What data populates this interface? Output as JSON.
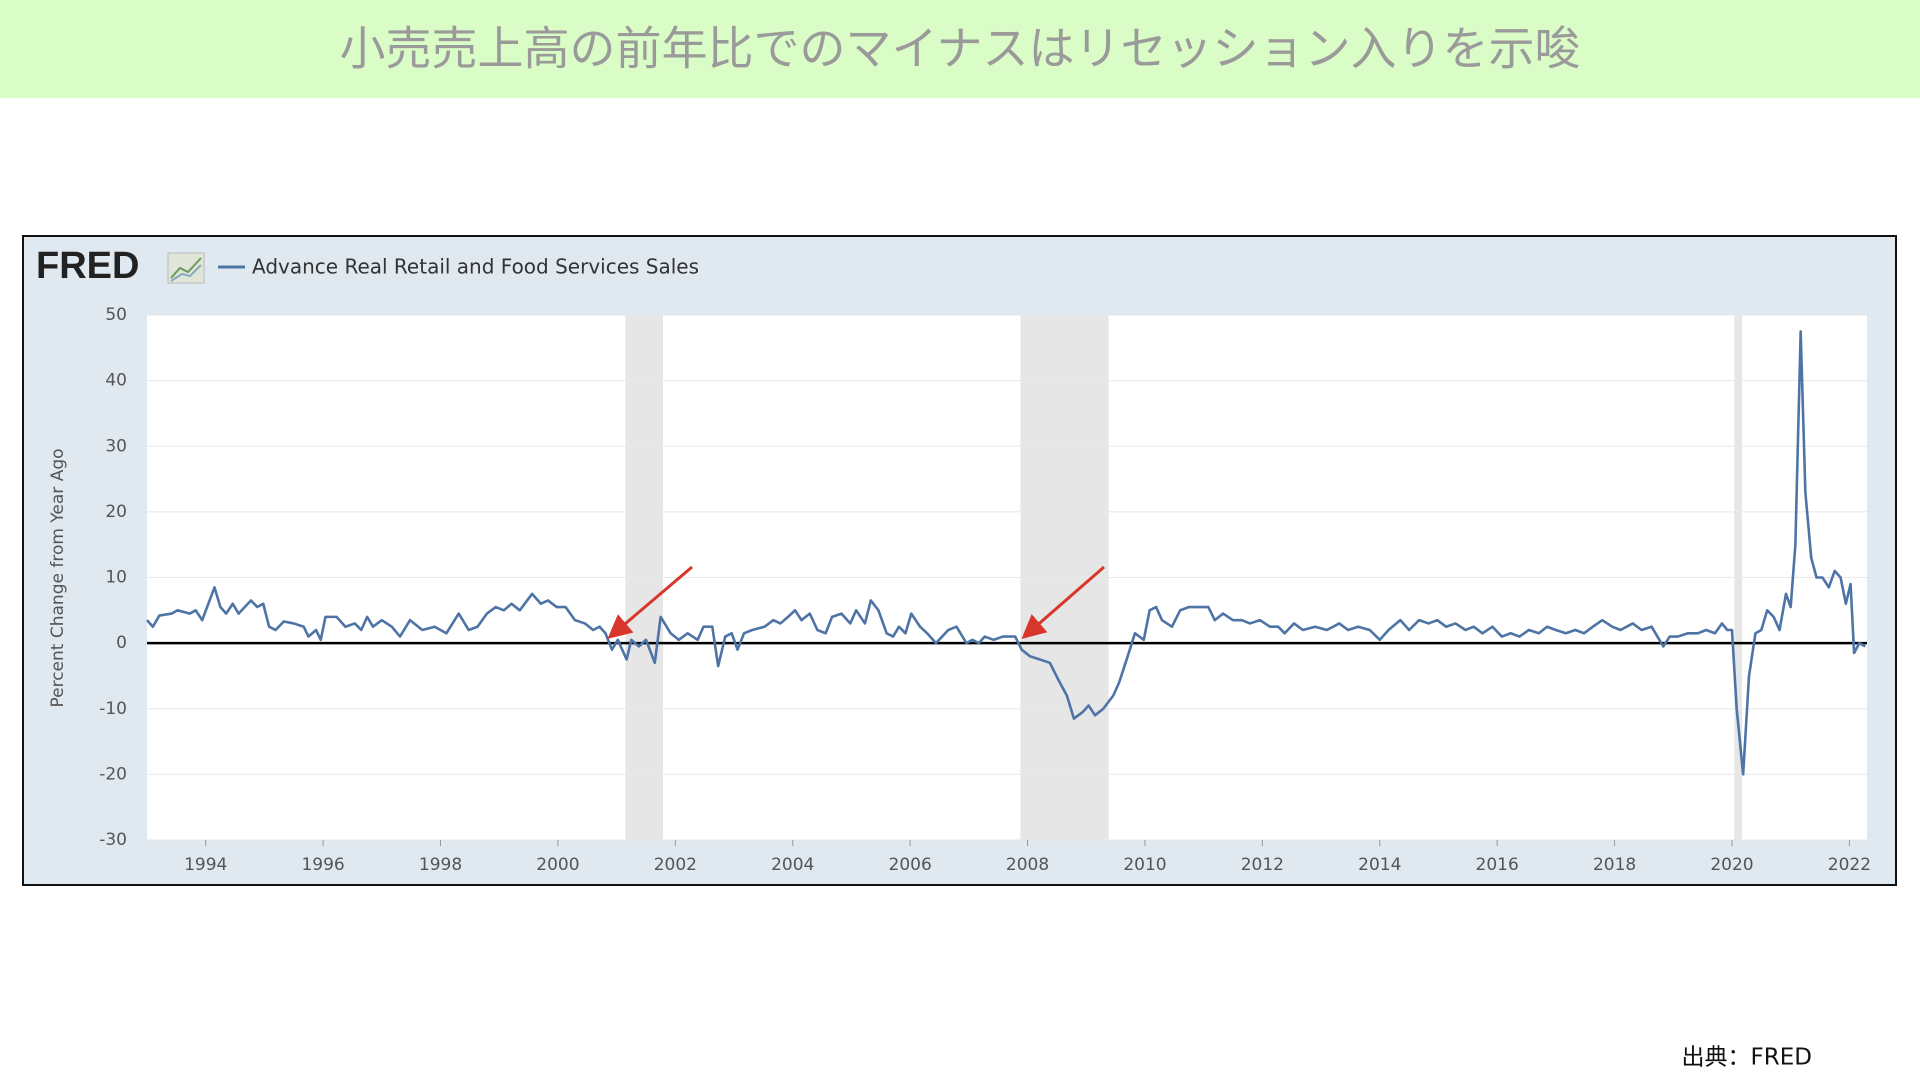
{
  "header": {
    "title": "小売売上高の前年比でのマイナスはリセッション入りを示唆"
  },
  "source": "出典：FRED",
  "chart_data": {
    "type": "line",
    "logo": "FRED",
    "y_label": "Percent Change from Year Ago",
    "xlim": [
      1993,
      2022.3
    ],
    "xticks": [
      1994,
      1996,
      1998,
      2000,
      2002,
      2004,
      2006,
      2008,
      2010,
      2012,
      2014,
      2016,
      2018,
      2020,
      2022
    ],
    "ylim": [
      -30,
      50
    ],
    "yticks": [
      -30,
      -20,
      -10,
      0,
      10,
      20,
      30,
      40,
      50
    ],
    "grid": true,
    "recessions": [
      [
        2001.15,
        2001.79
      ],
      [
        2007.88,
        2009.38
      ],
      [
        2020.04,
        2020.17
      ]
    ],
    "series": [
      {
        "name": "Advance Real Retail and Food Services Sales",
        "color": "#4e74a6",
        "x": [
          1993.0,
          1993.1,
          1993.21,
          1993.42,
          1993.52,
          1993.73,
          1993.83,
          1993.94,
          1994.15,
          1994.25,
          1994.35,
          1994.46,
          1994.56,
          1994.77,
          1994.88,
          1994.98,
          1995.08,
          1995.19,
          1995.33,
          1995.5,
          1995.67,
          1995.75,
          1995.88,
          1995.96,
          1996.04,
          1996.23,
          1996.38,
          1996.54,
          1996.65,
          1996.75,
          1996.85,
          1997.0,
          1997.17,
          1997.31,
          1997.48,
          1997.69,
          1997.9,
          1998.1,
          1998.31,
          1998.48,
          1998.63,
          1998.79,
          1998.94,
          1999.08,
          1999.21,
          1999.35,
          1999.56,
          1999.71,
          1999.83,
          1999.98,
          2000.13,
          2000.29,
          2000.46,
          2000.6,
          2000.71,
          2000.81,
          2000.92,
          2001.02,
          2001.17,
          2001.25,
          2001.38,
          2001.5,
          2001.65,
          2001.75,
          2001.92,
          2002.06,
          2002.21,
          2002.38,
          2002.48,
          2002.63,
          2002.73,
          2002.85,
          2002.96,
          2003.06,
          2003.17,
          2003.31,
          2003.52,
          2003.67,
          2003.79,
          2003.92,
          2004.04,
          2004.15,
          2004.29,
          2004.42,
          2004.56,
          2004.67,
          2004.83,
          2004.98,
          2005.08,
          2005.23,
          2005.33,
          2005.46,
          2005.6,
          2005.71,
          2005.81,
          2005.92,
          2006.02,
          2006.17,
          2006.29,
          2006.44,
          2006.65,
          2006.79,
          2006.96,
          2007.06,
          2007.17,
          2007.27,
          2007.42,
          2007.58,
          2007.79,
          2007.9,
          2008.04,
          2008.21,
          2008.38,
          2008.52,
          2008.67,
          2008.79,
          2008.94,
          2009.04,
          2009.15,
          2009.29,
          2009.46,
          2009.56,
          2009.67,
          2009.83,
          2009.98,
          2010.08,
          2010.19,
          2010.29,
          2010.46,
          2010.6,
          2010.75,
          2010.92,
          2011.08,
          2011.19,
          2011.33,
          2011.5,
          2011.65,
          2011.79,
          2011.96,
          2012.13,
          2012.27,
          2012.38,
          2012.54,
          2012.69,
          2012.9,
          2013.1,
          2013.31,
          2013.46,
          2013.63,
          2013.83,
          2014.0,
          2014.15,
          2014.35,
          2014.5,
          2014.67,
          2014.83,
          2014.98,
          2015.13,
          2015.29,
          2015.46,
          2015.6,
          2015.75,
          2015.92,
          2016.08,
          2016.23,
          2016.38,
          2016.54,
          2016.71,
          2016.85,
          2017.0,
          2017.17,
          2017.33,
          2017.48,
          2017.63,
          2017.79,
          2017.96,
          2018.1,
          2018.31,
          2018.46,
          2018.63,
          2018.73,
          2018.83,
          2018.94,
          2019.08,
          2019.25,
          2019.42,
          2019.56,
          2019.71,
          2019.83,
          2019.92,
          2020.0,
          2020.08,
          2020.19,
          2020.29,
          2020.4,
          2020.5,
          2020.6,
          2020.71,
          2020.81,
          2020.92,
          2021.0,
          2021.08,
          2021.17,
          2021.25,
          2021.35,
          2021.44,
          2021.54,
          2021.65,
          2021.75,
          2021.85,
          2021.94,
          2022.02,
          2022.08,
          2022.17,
          2022.27
        ],
        "values": [
          3.5,
          2.5,
          4.2,
          4.5,
          5,
          4.5,
          5,
          3.5,
          8.5,
          5.5,
          4.5,
          6,
          4.5,
          6.5,
          5.5,
          6,
          2.5,
          2,
          3.3,
          3,
          2.5,
          1,
          2,
          0.5,
          4,
          4,
          2.5,
          3,
          2,
          4,
          2.5,
          3.5,
          2.5,
          1,
          3.5,
          2,
          2.5,
          1.5,
          4.5,
          2,
          2.5,
          4.5,
          5.5,
          5,
          6,
          5,
          7.5,
          6,
          6.5,
          5.5,
          5.5,
          3.5,
          3,
          2,
          2.5,
          1.5,
          -1,
          0.5,
          -2.5,
          0.5,
          -0.5,
          0.5,
          -3,
          4,
          1.5,
          0.5,
          1.5,
          0.5,
          2.5,
          2.5,
          -3.5,
          1,
          1.5,
          -1,
          1.5,
          2,
          2.5,
          3.5,
          3,
          4,
          5,
          3.5,
          4.5,
          2,
          1.5,
          4,
          4.5,
          3,
          5,
          3,
          6.5,
          5,
          1.5,
          1,
          2.5,
          1.5,
          4.5,
          2.5,
          1.5,
          0,
          2,
          2.5,
          0,
          0.5,
          0,
          1,
          0.5,
          1,
          1,
          -1,
          -2,
          -2.5,
          -3,
          -5.5,
          -8,
          -11.5,
          -10.5,
          -9.5,
          -11,
          -10,
          -8,
          -6,
          -3,
          1.5,
          0.5,
          5,
          5.5,
          3.5,
          2.5,
          5,
          5.5,
          5.5,
          5.5,
          3.5,
          4.5,
          3.5,
          3.5,
          3,
          3.5,
          2.5,
          2.5,
          1.5,
          3,
          2,
          2.5,
          2,
          3,
          2,
          2.5,
          2,
          0.5,
          2,
          3.5,
          2,
          3.5,
          3,
          3.5,
          2.5,
          3,
          2,
          2.5,
          1.5,
          2.5,
          1,
          1.5,
          1,
          2,
          1.5,
          2.5,
          2,
          1.5,
          2,
          1.5,
          2.5,
          3.5,
          2.5,
          2,
          3,
          2,
          2.5,
          1,
          -0.5,
          1,
          1,
          1.5,
          1.5,
          2,
          1.5,
          3,
          2,
          2,
          -10,
          -20,
          -5,
          1.5,
          2,
          5,
          4,
          2,
          7.5,
          5.5,
          15,
          47.5,
          23,
          13,
          10,
          10,
          8.5,
          11,
          10,
          6,
          9,
          -1.5,
          0,
          -0.5
        ]
      }
    ]
  }
}
